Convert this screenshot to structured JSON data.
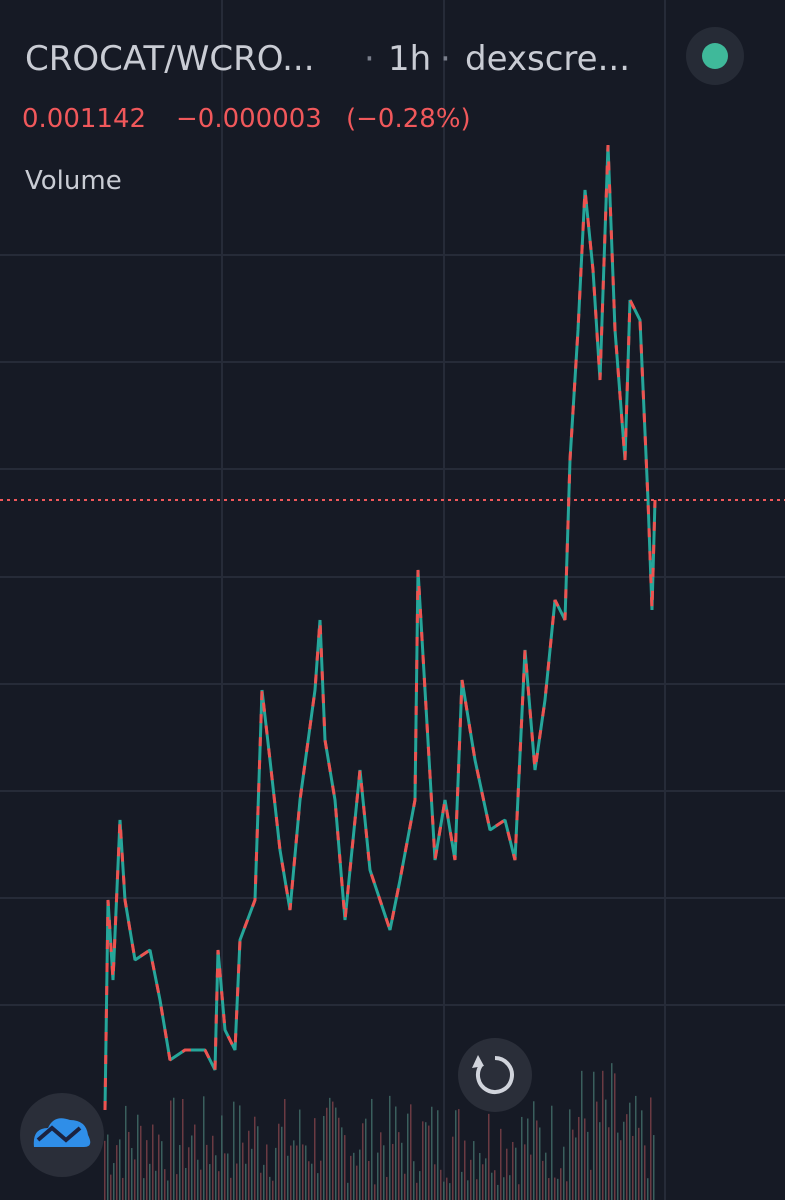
{
  "header": {
    "symbol": "CROCAT/WCRO...",
    "interval": "1h",
    "source": "dexscre..."
  },
  "quote": {
    "price": "0.001142",
    "change": "−0.000003",
    "change_percent": "(−0.28%)"
  },
  "indicator": {
    "label": "Volume"
  }
}
